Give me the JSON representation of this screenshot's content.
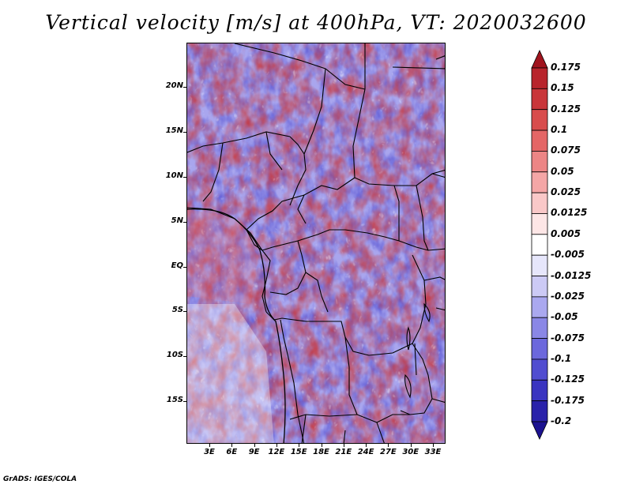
{
  "title": "Vertical velocity [m/s] at 400hPa, VT: 2020032600",
  "credit": "GrADS: IGES/COLA",
  "lat_labels": [
    "20N",
    "15N",
    "10N",
    "5N",
    "EQ",
    "5S",
    "10S",
    "15S"
  ],
  "lon_labels": [
    "3E",
    "6E",
    "9E",
    "12E",
    "15E",
    "18E",
    "21E",
    "24E",
    "27E",
    "30E",
    "33E"
  ],
  "colorbar": {
    "labels": [
      "0.175",
      "0.15",
      "0.125",
      "0.1",
      "0.075",
      "0.05",
      "0.025",
      "0.0125",
      "0.005",
      "-0.005",
      "-0.0125",
      "-0.025",
      "-0.05",
      "-0.075",
      "-0.1",
      "-0.125",
      "-0.175",
      "-0.2"
    ],
    "colors": [
      "#a0141e",
      "#b8242c",
      "#c9363a",
      "#d84c4c",
      "#e46666",
      "#ec8585",
      "#f4a6a6",
      "#f9c8c8",
      "#fde6e6",
      "#ffffff",
      "#e6e6fb",
      "#cccaf5",
      "#aaa8ef",
      "#8a87e6",
      "#6c68dc",
      "#514dd0",
      "#3a34c0",
      "#2a22aa",
      "#1c1290"
    ]
  },
  "colors": {
    "positive": "#d84c4c",
    "negative": "#6c68dc",
    "frame": "#000000"
  }
}
